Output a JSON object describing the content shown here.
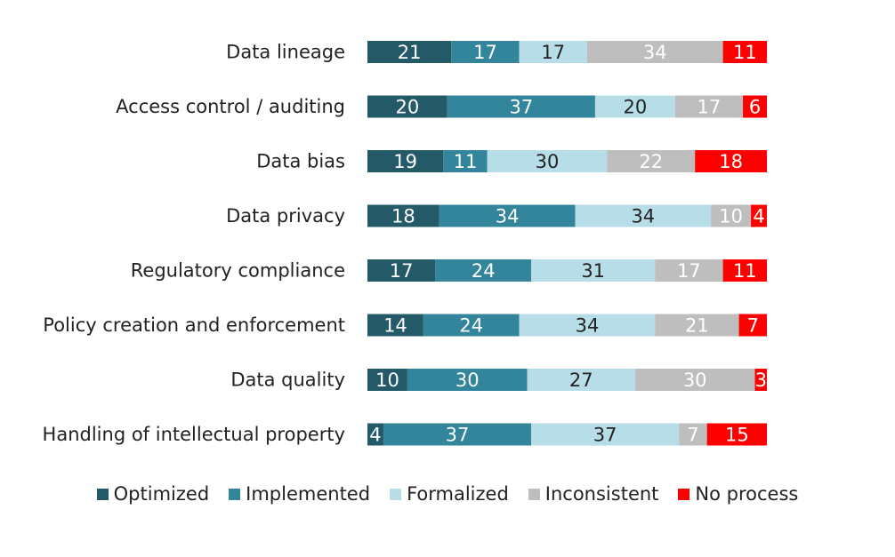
{
  "chart_data": {
    "type": "bar",
    "orientation": "horizontal",
    "stacked": true,
    "normalized": true,
    "title": "",
    "xlabel": "",
    "ylabel": "",
    "xlim": [
      0,
      100
    ],
    "grid": false,
    "legend_position": "bottom",
    "categories": [
      "Data lineage",
      "Access control / auditing",
      "Data bias",
      "Data privacy",
      "Regulatory compliance",
      "Policy creation and enforcement",
      "Data quality",
      "Handling of intellectual property"
    ],
    "series": [
      {
        "name": "Optimized",
        "color": "#245a67",
        "label_color": "#ffffff",
        "values": [
          21,
          20,
          19,
          18,
          17,
          14,
          10,
          4
        ]
      },
      {
        "name": "Implemented",
        "color": "#33859b",
        "label_color": "#ffffff",
        "values": [
          17,
          37,
          11,
          34,
          24,
          24,
          30,
          37
        ]
      },
      {
        "name": "Formalized",
        "color": "#b7dde8",
        "label_color": "#222222",
        "values": [
          17,
          20,
          30,
          34,
          31,
          34,
          27,
          37
        ]
      },
      {
        "name": "Inconsistent",
        "color": "#bebebe",
        "label_color": "#ffffff",
        "values": [
          34,
          17,
          22,
          10,
          17,
          21,
          30,
          7
        ]
      },
      {
        "name": "No process",
        "color": "#ff0000",
        "label_color": "#ffffff",
        "values": [
          11,
          6,
          18,
          4,
          11,
          7,
          3,
          15
        ]
      }
    ]
  }
}
